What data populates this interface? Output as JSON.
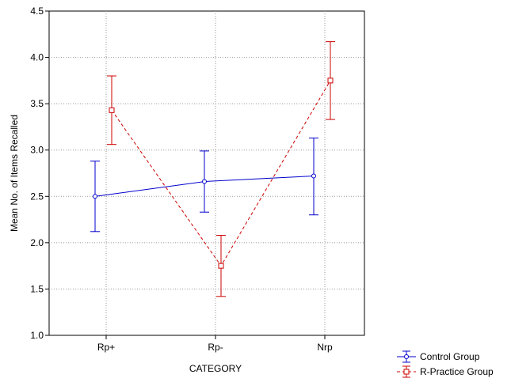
{
  "chart_data": {
    "type": "line",
    "title": "",
    "xlabel": "CATEGORY",
    "ylabel": "Mean No. of Items Recalled",
    "categories": [
      "Rp+",
      "Rp-",
      "Nrp"
    ],
    "ylim": [
      1.0,
      4.5
    ],
    "yticks": [
      "1.0",
      "1.5",
      "2.0",
      "2.5",
      "3.0",
      "3.5",
      "4.0",
      "4.5"
    ],
    "grid": true,
    "legend_position": "bottom-right",
    "series": [
      {
        "name": "Control Group",
        "color": "#0000cc",
        "line_style": "solid",
        "marker": "circle",
        "values": [
          2.5,
          2.66,
          2.72
        ],
        "error_low": [
          2.12,
          2.33,
          2.3
        ],
        "error_high": [
          2.88,
          2.99,
          3.13
        ]
      },
      {
        "name": "R-Practice Group",
        "color": "#cc0000",
        "line_style": "dashed",
        "marker": "square",
        "values": [
          3.43,
          1.75,
          3.75
        ],
        "error_low": [
          3.06,
          1.42,
          3.33
        ],
        "error_high": [
          3.8,
          2.08,
          4.17
        ]
      }
    ]
  }
}
